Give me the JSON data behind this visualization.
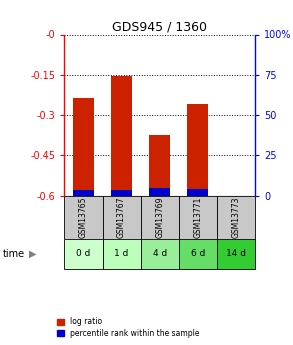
{
  "title": "GDS945 / 1360",
  "gsm_labels": [
    "GSM13765",
    "GSM13767",
    "GSM13769",
    "GSM13771",
    "GSM13773"
  ],
  "time_labels": [
    "0 d",
    "1 d",
    "4 d",
    "6 d",
    "14 d"
  ],
  "time_colors": [
    "#ccffcc",
    "#bbffbb",
    "#99ee99",
    "#66dd66",
    "#33cc33"
  ],
  "log_ratios": [
    -0.235,
    -0.155,
    -0.375,
    -0.258,
    null
  ],
  "percentile_ranks": [
    3.5,
    3.5,
    5.0,
    4.0,
    null
  ],
  "bar_color_red": "#cc2200",
  "bar_color_blue": "#0000cc",
  "ylim_left": [
    -0.6,
    0.0
  ],
  "ylim_right": [
    0,
    100
  ],
  "yticks_left": [
    0,
    -0.15,
    -0.3,
    -0.45,
    -0.6
  ],
  "yticks_left_labels": [
    "-0",
    "-0.15",
    "-0.3",
    "-0.45",
    "-0.6"
  ],
  "yticks_right": [
    0,
    25,
    50,
    75,
    100
  ],
  "yticks_right_labels": [
    "0",
    "25",
    "50",
    "75",
    "100%"
  ],
  "gsm_bg": "#c8c8c8",
  "legend_log_ratio": "log ratio",
  "legend_pct": "percentile rank within the sample"
}
